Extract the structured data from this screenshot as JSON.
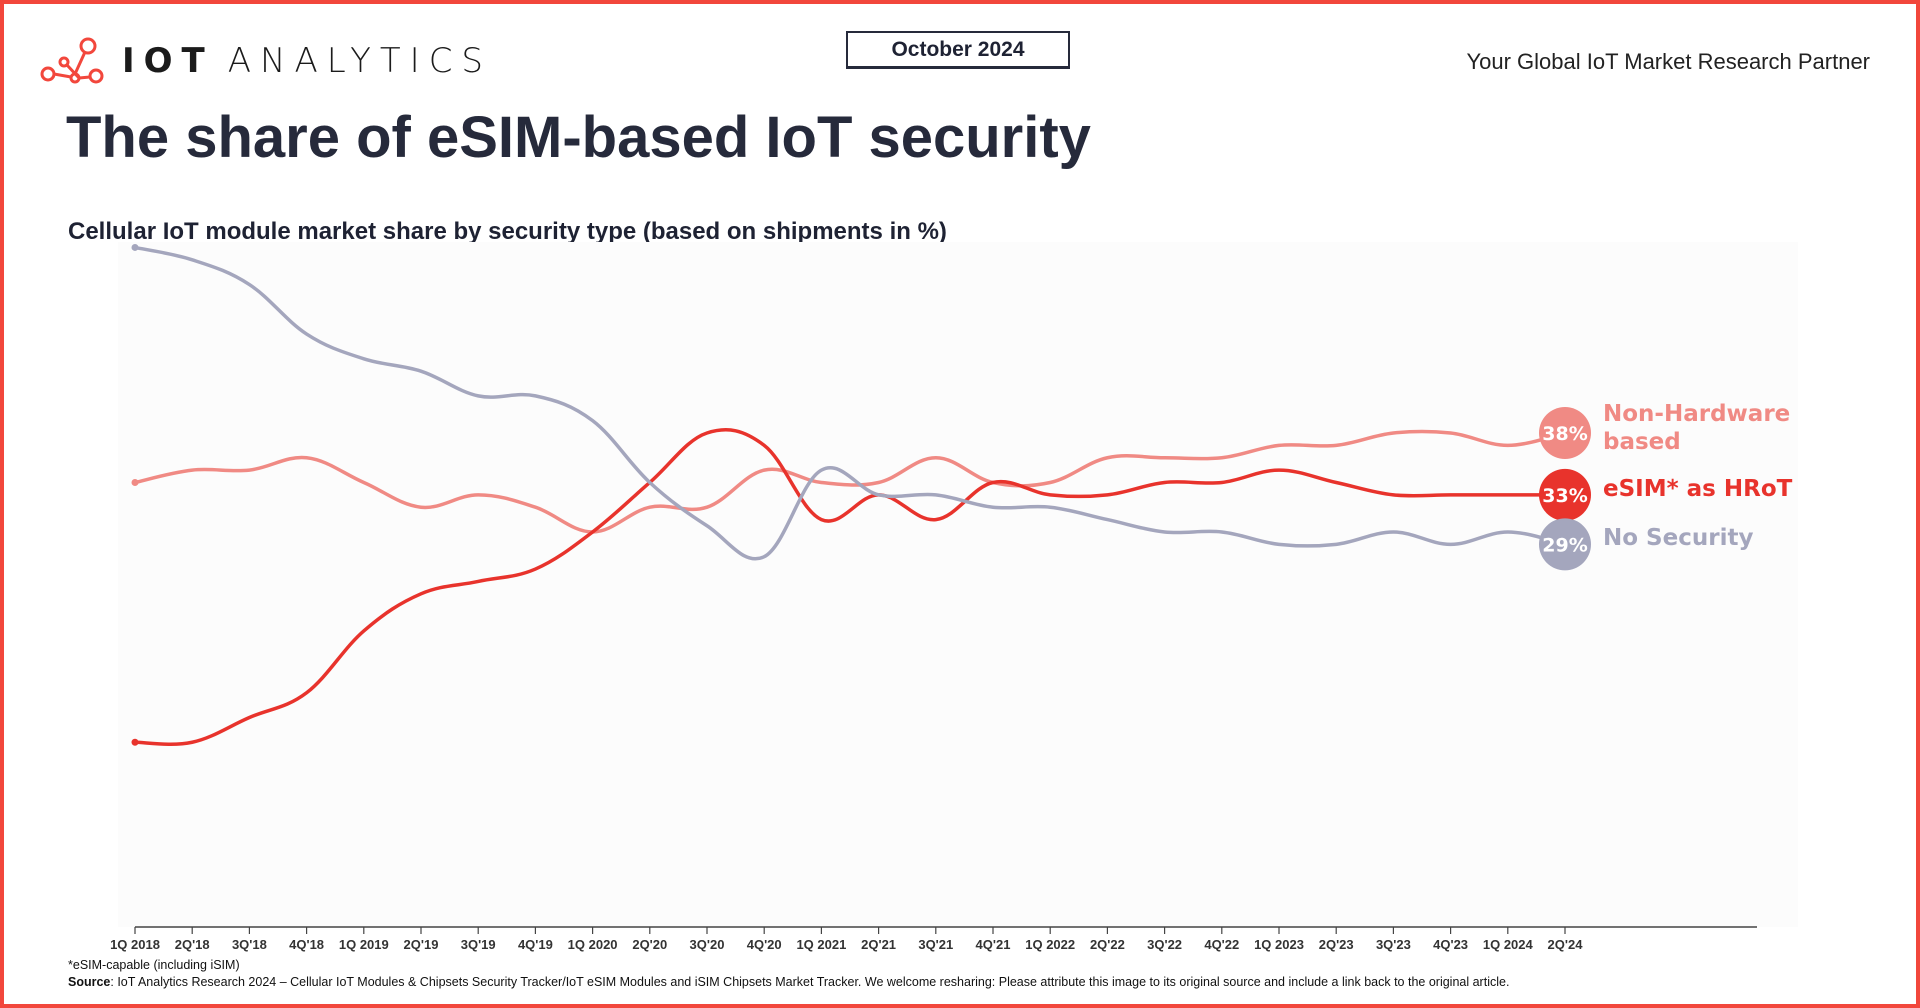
{
  "header": {
    "logo_text_bold": "IOT",
    "logo_text_light": "ANALYTICS",
    "date": "October 2024",
    "tagline": "Your Global IoT Market Research Partner",
    "title": "The share of eSIM-based IoT security"
  },
  "chart_data": {
    "type": "line",
    "title": "The share of eSIM-based IoT security",
    "subtitle": "Cellular IoT module market share by security type (based on shipments in %)",
    "x": [
      "1Q 2018",
      "2Q'18",
      "3Q'18",
      "4Q'18",
      "1Q 2019",
      "2Q'19",
      "3Q'19",
      "4Q'19",
      "1Q 2020",
      "2Q'20",
      "3Q'20",
      "4Q'20",
      "1Q 2021",
      "2Q'21",
      "3Q'21",
      "4Q'21",
      "1Q 2022",
      "2Q'22",
      "3Q'22",
      "4Q'22",
      "1Q 2023",
      "2Q'23",
      "3Q'23",
      "4Q'23",
      "1Q 2024",
      "2Q'24"
    ],
    "ylim": [
      0,
      55
    ],
    "grid": false,
    "legend": "right end labels",
    "series": [
      {
        "name": "Non-Hardware based",
        "end_label": "38%",
        "color": "#f08a84",
        "values": [
          34,
          35,
          35,
          36,
          34,
          32,
          33,
          32,
          30,
          32,
          32,
          35,
          34,
          34,
          36,
          34,
          34,
          36,
          36,
          36,
          37,
          37,
          38,
          38,
          37,
          38
        ]
      },
      {
        "name": "eSIM* as HRoT",
        "end_label": "33%",
        "color": "#e8332c",
        "values": [
          13,
          13,
          15,
          17,
          22,
          25,
          26,
          27,
          30,
          34,
          38,
          37,
          31,
          33,
          31,
          34,
          33,
          33,
          34,
          34,
          35,
          34,
          33,
          33,
          33,
          33
        ]
      },
      {
        "name": "No Security",
        "end_label": "29%",
        "color": "#a4a6bd",
        "values": [
          53,
          52,
          50,
          46,
          44,
          43,
          41,
          41,
          39,
          34,
          30.5,
          28,
          35,
          33,
          33,
          32,
          32,
          31,
          30,
          30,
          29,
          29,
          30,
          29,
          30,
          29
        ]
      }
    ]
  },
  "footer": {
    "note": "*eSIM-capable (including iSIM)",
    "source_label": "Source",
    "source_text": ": IoT Analytics Research 2024 – Cellular IoT Modules & Chipsets Security Tracker/IoT eSIM Modules and iSIM Chipsets Market Tracker. We welcome resharing: Please attribute this image to its original source and include a link back to the original article."
  }
}
